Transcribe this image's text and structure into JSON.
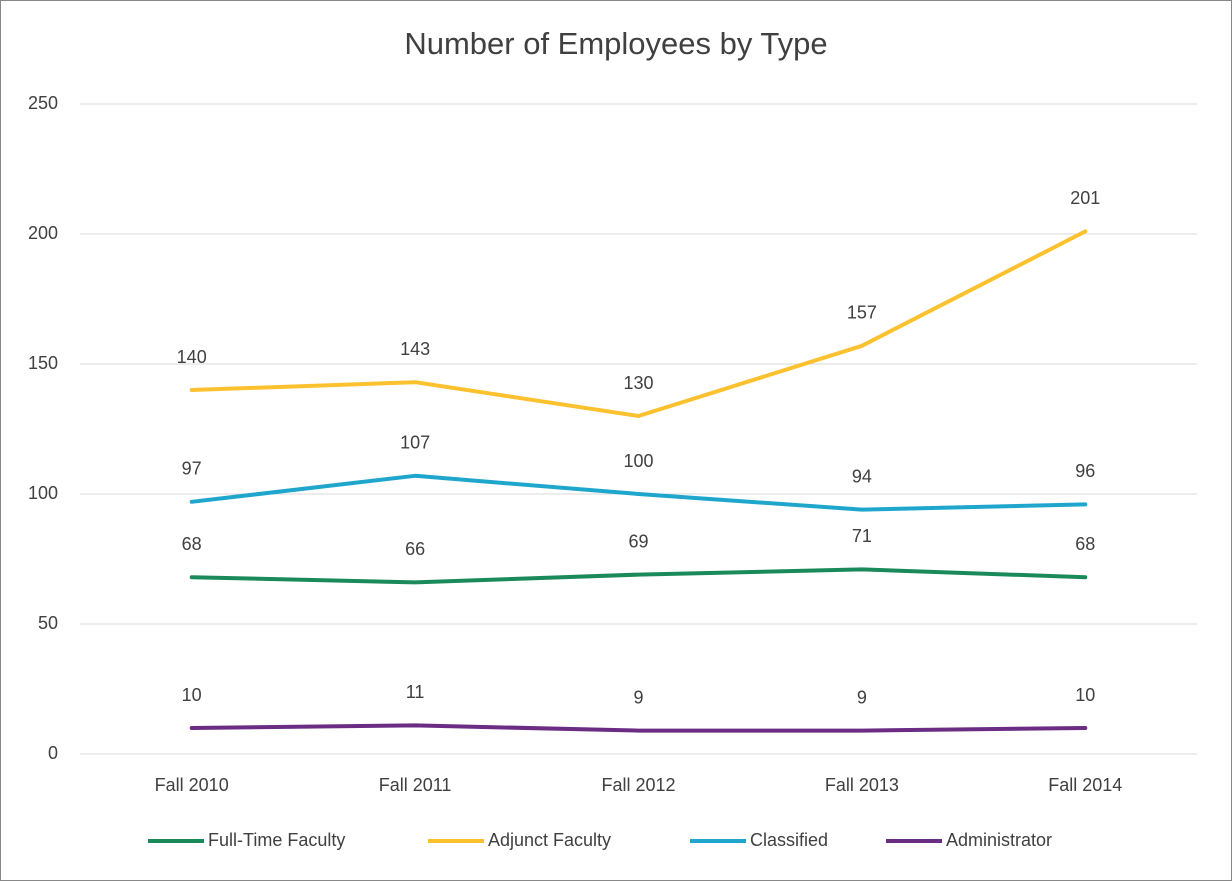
{
  "chart_data": {
    "type": "line",
    "title": "Number of Employees by Type",
    "categories": [
      "Fall 2010",
      "Fall 2011",
      "Fall 2012",
      "Fall 2013",
      "Fall 2014"
    ],
    "series": [
      {
        "name": "Full-Time Faculty",
        "color": "#1b8a5a",
        "values": [
          68,
          66,
          69,
          71,
          68
        ]
      },
      {
        "name": "Adjunct Faculty",
        "color": "#fcc12e",
        "values": [
          140,
          143,
          130,
          157,
          201
        ]
      },
      {
        "name": "Classified",
        "color": "#1fa6cc",
        "values": [
          97,
          107,
          100,
          94,
          96
        ]
      },
      {
        "name": "Administrator",
        "color": "#6b2c83",
        "values": [
          10,
          11,
          9,
          9,
          10
        ]
      }
    ],
    "ylim": [
      0,
      250
    ],
    "yticks": [
      0,
      50,
      100,
      150,
      200,
      250
    ],
    "grid": true,
    "legend": "bottom"
  }
}
